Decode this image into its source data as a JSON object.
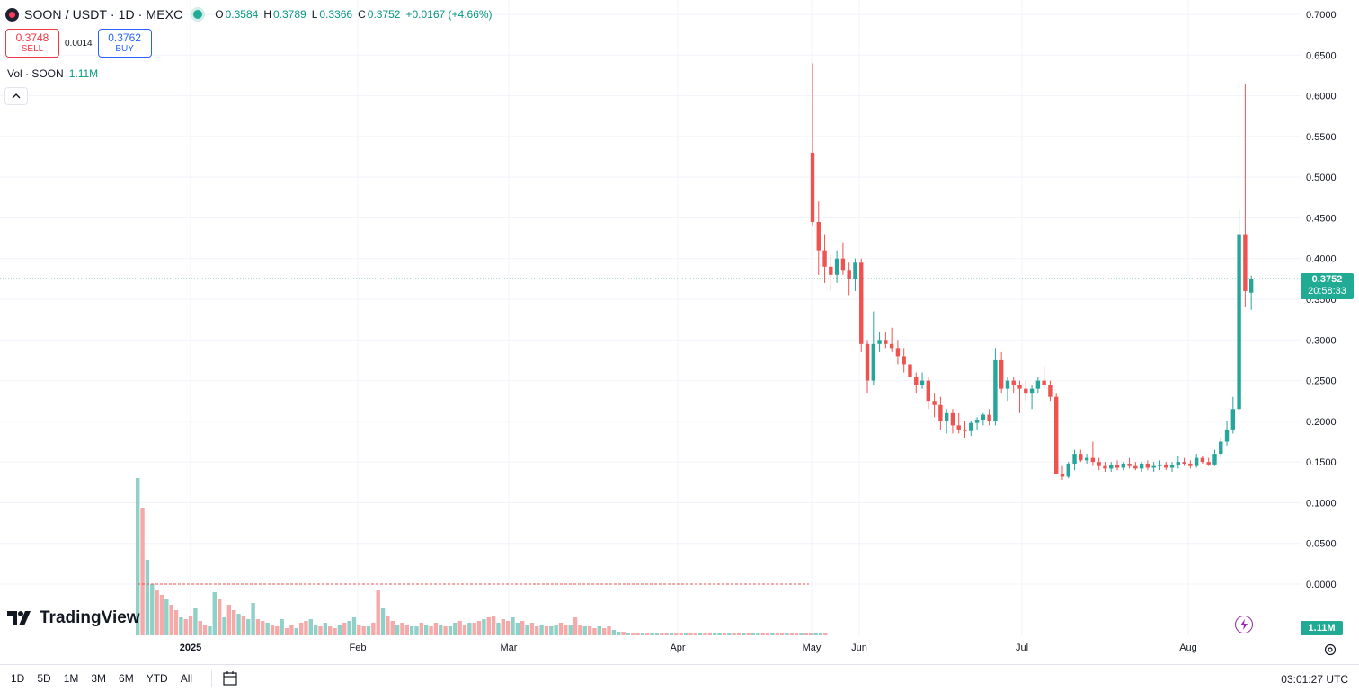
{
  "header": {
    "symbol_title": "SOON / USDT · 1D · MEXC",
    "ohlc": [
      {
        "k": "O",
        "v": "0.3584"
      },
      {
        "k": "H",
        "v": "0.3789"
      },
      {
        "k": "L",
        "v": "0.3366"
      },
      {
        "k": "C",
        "v": "0.3752"
      }
    ],
    "change": "+0.0167 (+4.66%)"
  },
  "trade": {
    "sell_price": "0.3748",
    "sell_label": "SELL",
    "spread": "0.0014",
    "buy_price": "0.3762",
    "buy_label": "BUY"
  },
  "volume_legend": {
    "label": "Vol · SOON",
    "value": "1.11M"
  },
  "logo_text": "TradingView",
  "price_tag": {
    "price": "0.3752",
    "countdown": "20:58:33"
  },
  "volume_tag": "1.11M",
  "bottom_bar": {
    "ranges": [
      "1D",
      "5D",
      "1M",
      "3M",
      "6M",
      "YTD",
      "All"
    ],
    "clock": "03:01:27 UTC"
  },
  "colors": {
    "up": "#26a69a",
    "down": "#ef5350",
    "up_volume": "#8fd0c7",
    "down_volume": "#f5a9a9",
    "accent": "#2962ff",
    "sell": "#f23645",
    "price_tag_bg": "#22ab94"
  },
  "icons": [
    "collapse-chevron-icon",
    "tradingview-logo-icon",
    "calendar-icon",
    "settings-gear-icon",
    "lightning-icon"
  ],
  "chart_data": {
    "type": "candlestick",
    "y_axis_ticks": [
      "0.7000",
      "0.6500",
      "0.6000",
      "0.5500",
      "0.5000",
      "0.4500",
      "0.4000",
      "0.3500",
      "0.3000",
      "0.2500",
      "0.2000",
      "0.1500",
      "0.1000",
      "0.0500",
      "0.0000"
    ],
    "x_axis_labels": [
      "2025",
      "Feb",
      "Mar",
      "Apr",
      "May",
      "Jun",
      "Jul",
      "Aug"
    ],
    "ylim": [
      0,
      0.7
    ],
    "last_price": 0.3752,
    "grid": true,
    "ohlc": [
      [
        0.53,
        0.64,
        0.44,
        0.445
      ],
      [
        0.445,
        0.47,
        0.38,
        0.41
      ],
      [
        0.41,
        0.43,
        0.37,
        0.39
      ],
      [
        0.39,
        0.405,
        0.36,
        0.38
      ],
      [
        0.38,
        0.41,
        0.37,
        0.4
      ],
      [
        0.4,
        0.42,
        0.38,
        0.385
      ],
      [
        0.385,
        0.395,
        0.355,
        0.375
      ],
      [
        0.375,
        0.4,
        0.36,
        0.395
      ],
      [
        0.395,
        0.4,
        0.285,
        0.295
      ],
      [
        0.295,
        0.3,
        0.235,
        0.25
      ],
      [
        0.25,
        0.335,
        0.245,
        0.295
      ],
      [
        0.295,
        0.31,
        0.285,
        0.3
      ],
      [
        0.3,
        0.31,
        0.29,
        0.295
      ],
      [
        0.295,
        0.315,
        0.285,
        0.29
      ],
      [
        0.29,
        0.3,
        0.27,
        0.28
      ],
      [
        0.28,
        0.29,
        0.26,
        0.27
      ],
      [
        0.27,
        0.275,
        0.25,
        0.255
      ],
      [
        0.255,
        0.26,
        0.235,
        0.245
      ],
      [
        0.245,
        0.26,
        0.24,
        0.25
      ],
      [
        0.25,
        0.255,
        0.215,
        0.225
      ],
      [
        0.225,
        0.235,
        0.205,
        0.22
      ],
      [
        0.22,
        0.23,
        0.19,
        0.2
      ],
      [
        0.2,
        0.215,
        0.185,
        0.21
      ],
      [
        0.21,
        0.215,
        0.185,
        0.195
      ],
      [
        0.195,
        0.21,
        0.185,
        0.19
      ],
      [
        0.19,
        0.2,
        0.18,
        0.188
      ],
      [
        0.188,
        0.2,
        0.182,
        0.198
      ],
      [
        0.198,
        0.205,
        0.19,
        0.202
      ],
      [
        0.202,
        0.21,
        0.195,
        0.208
      ],
      [
        0.208,
        0.215,
        0.195,
        0.2
      ],
      [
        0.2,
        0.29,
        0.195,
        0.275
      ],
      [
        0.275,
        0.285,
        0.235,
        0.24
      ],
      [
        0.24,
        0.255,
        0.225,
        0.25
      ],
      [
        0.25,
        0.255,
        0.235,
        0.245
      ],
      [
        0.245,
        0.25,
        0.21,
        0.24
      ],
      [
        0.24,
        0.25,
        0.225,
        0.235
      ],
      [
        0.235,
        0.245,
        0.215,
        0.24
      ],
      [
        0.24,
        0.255,
        0.235,
        0.25
      ],
      [
        0.25,
        0.268,
        0.24,
        0.245
      ],
      [
        0.245,
        0.25,
        0.225,
        0.23
      ],
      [
        0.23,
        0.235,
        0.135,
        0.135
      ],
      [
        0.135,
        0.145,
        0.128,
        0.132
      ],
      [
        0.132,
        0.15,
        0.13,
        0.148
      ],
      [
        0.148,
        0.165,
        0.14,
        0.16
      ],
      [
        0.16,
        0.165,
        0.15,
        0.152
      ],
      [
        0.152,
        0.16,
        0.148,
        0.155
      ],
      [
        0.155,
        0.175,
        0.145,
        0.15
      ],
      [
        0.15,
        0.155,
        0.14,
        0.145
      ],
      [
        0.145,
        0.15,
        0.138,
        0.142
      ],
      [
        0.142,
        0.15,
        0.138,
        0.146
      ],
      [
        0.146,
        0.152,
        0.14,
        0.143
      ],
      [
        0.143,
        0.15,
        0.14,
        0.148
      ],
      [
        0.148,
        0.155,
        0.142,
        0.145
      ],
      [
        0.145,
        0.15,
        0.14,
        0.142
      ],
      [
        0.142,
        0.15,
        0.138,
        0.148
      ],
      [
        0.148,
        0.152,
        0.14,
        0.143
      ],
      [
        0.143,
        0.15,
        0.138,
        0.145
      ],
      [
        0.145,
        0.152,
        0.14,
        0.147
      ],
      [
        0.147,
        0.15,
        0.14,
        0.143
      ],
      [
        0.143,
        0.15,
        0.138,
        0.146
      ],
      [
        0.146,
        0.158,
        0.142,
        0.15
      ],
      [
        0.15,
        0.155,
        0.145,
        0.148
      ],
      [
        0.148,
        0.152,
        0.142,
        0.145
      ],
      [
        0.145,
        0.16,
        0.143,
        0.155
      ],
      [
        0.155,
        0.158,
        0.148,
        0.15
      ],
      [
        0.15,
        0.155,
        0.145,
        0.147
      ],
      [
        0.147,
        0.165,
        0.145,
        0.16
      ],
      [
        0.16,
        0.18,
        0.155,
        0.175
      ],
      [
        0.175,
        0.2,
        0.17,
        0.19
      ],
      [
        0.19,
        0.23,
        0.185,
        0.215
      ],
      [
        0.215,
        0.46,
        0.21,
        0.43
      ],
      [
        0.43,
        0.615,
        0.34,
        0.36
      ],
      [
        0.358,
        0.379,
        0.337,
        0.375
      ]
    ]
  }
}
